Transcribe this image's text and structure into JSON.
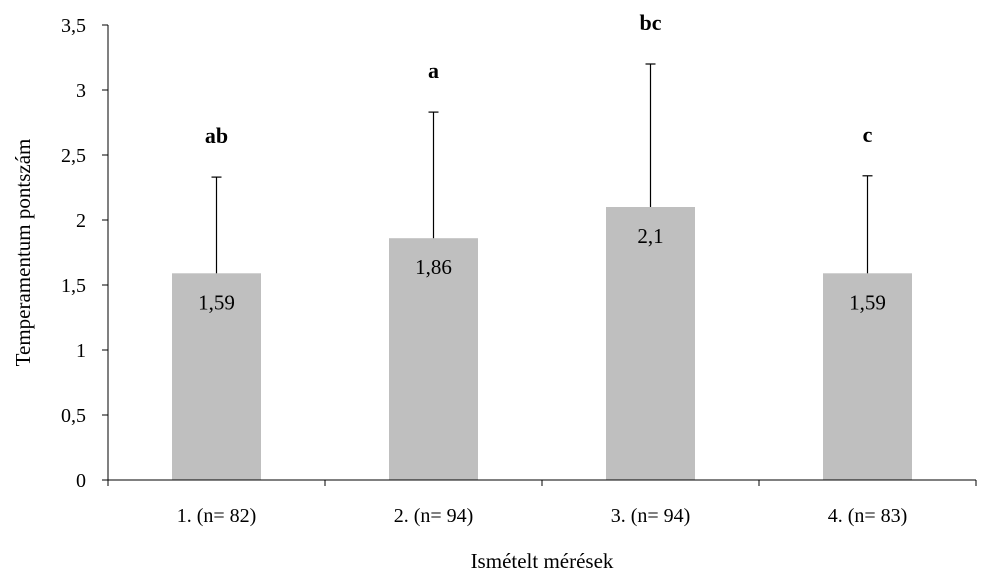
{
  "chart_data": {
    "type": "bar",
    "title": "",
    "xlabel": "Ismételt mérések",
    "ylabel": "Temperamentum pontszám",
    "ylim": [
      0,
      3.5
    ],
    "y_ticks": [
      0,
      0.5,
      1,
      1.5,
      2,
      2.5,
      3,
      3.5
    ],
    "y_tick_labels": [
      "0",
      "0,5",
      "1",
      "1,5",
      "2",
      "2,5",
      "3",
      "3,5"
    ],
    "categories": [
      "1. (n= 82)",
      "2. (n= 94)",
      "3. (n= 94)",
      "4. (n= 83)"
    ],
    "values": [
      1.59,
      1.86,
      2.1,
      1.59
    ],
    "value_labels": [
      "1,59",
      "1,86",
      "2,1",
      "1,59"
    ],
    "error_upper": [
      2.33,
      2.83,
      3.2,
      2.34
    ],
    "significance_letters": [
      "ab",
      "a",
      "bc",
      "c"
    ],
    "grid": false,
    "legend": "none",
    "bar_color": "#bfbfbf",
    "axis_color": "#000000"
  }
}
